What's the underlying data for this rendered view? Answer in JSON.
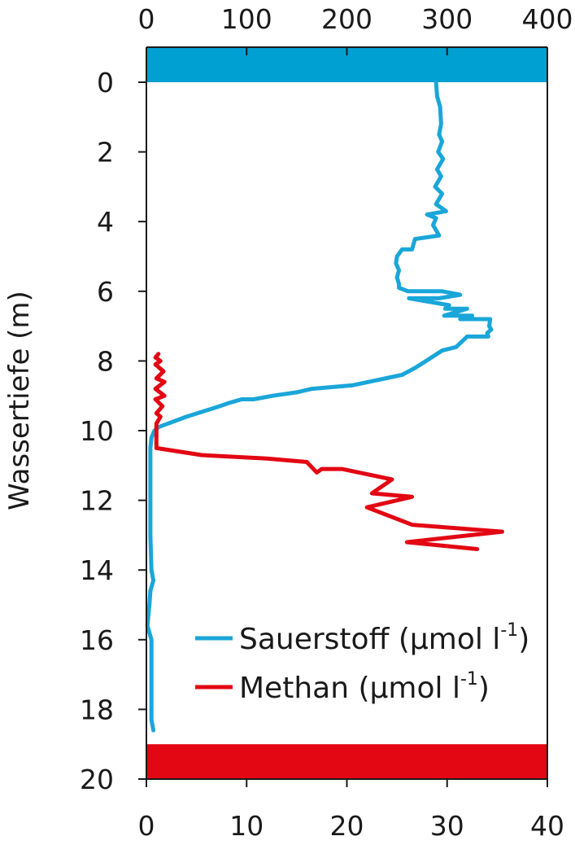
{
  "chart_data": {
    "type": "line",
    "orientation": "depth-profile (y axis inverted, depth increasing downward)",
    "ylabel": "Wassertiefe (m)",
    "ylim": [
      0,
      20
    ],
    "y_ticks": [
      0,
      2,
      4,
      6,
      8,
      10,
      12,
      14,
      16,
      18,
      20
    ],
    "x_top": {
      "ticks": [
        0,
        100,
        200,
        300,
        400
      ],
      "range": [
        0,
        400
      ],
      "series": "Sauerstoff"
    },
    "x_bottom": {
      "ticks": [
        0,
        10,
        20,
        30,
        40
      ],
      "range": [
        0,
        40
      ],
      "series": "Methan"
    },
    "legend": {
      "position": "bottom-right",
      "entries": [
        {
          "name": "Sauerstoff",
          "unit_base": "(µmol l",
          "unit_sup": "-1",
          "unit_close": ")"
        },
        {
          "name": "Methan",
          "unit_base": "(µmol l",
          "unit_sup": "-1",
          "unit_close": ")"
        }
      ]
    },
    "bands": [
      {
        "name": "surface",
        "from": -1,
        "to": 0,
        "color": "#00a0d2"
      },
      {
        "name": "bottom",
        "from": 19,
        "to": 20,
        "color": "#e30613"
      }
    ],
    "series": [
      {
        "name": "Sauerstoff",
        "axis": "top",
        "color": "#1aa6d9",
        "points": [
          [
            289,
            0.0
          ],
          [
            290,
            0.4
          ],
          [
            293,
            0.7
          ],
          [
            294,
            1.2
          ],
          [
            292,
            1.5
          ],
          [
            295,
            1.7
          ],
          [
            291,
            2.0
          ],
          [
            296,
            2.2
          ],
          [
            290,
            2.5
          ],
          [
            294,
            2.7
          ],
          [
            288,
            3.0
          ],
          [
            295,
            3.2
          ],
          [
            289,
            3.5
          ],
          [
            299,
            3.7
          ],
          [
            280,
            3.8
          ],
          [
            289,
            3.9
          ],
          [
            286,
            4.1
          ],
          [
            292,
            4.4
          ],
          [
            268,
            4.5
          ],
          [
            265,
            4.8
          ],
          [
            255,
            4.8
          ],
          [
            250,
            5.0
          ],
          [
            249,
            5.2
          ],
          [
            252,
            5.4
          ],
          [
            250,
            5.6
          ],
          [
            252,
            5.8
          ],
          [
            252,
            5.9
          ],
          [
            261,
            6.0
          ],
          [
            295,
            6.0
          ],
          [
            313,
            6.1
          ],
          [
            292,
            6.2
          ],
          [
            262,
            6.2
          ],
          [
            302,
            6.4
          ],
          [
            298,
            6.5
          ],
          [
            320,
            6.5
          ],
          [
            297,
            6.7
          ],
          [
            325,
            6.7
          ],
          [
            313,
            6.8
          ],
          [
            330,
            6.8
          ],
          [
            343,
            6.8
          ],
          [
            342,
            7.0
          ],
          [
            344,
            7.1
          ],
          [
            340,
            7.2
          ],
          [
            341,
            7.3
          ],
          [
            320,
            7.3
          ],
          [
            309,
            7.6
          ],
          [
            295,
            7.7
          ],
          [
            279,
            8.0
          ],
          [
            268,
            8.2
          ],
          [
            255,
            8.4
          ],
          [
            222,
            8.6
          ],
          [
            205,
            8.7
          ],
          [
            165,
            8.8
          ],
          [
            150,
            8.9
          ],
          [
            126,
            9.0
          ],
          [
            107,
            9.1
          ],
          [
            95,
            9.1
          ],
          [
            83,
            9.2
          ],
          [
            73,
            9.3
          ],
          [
            40,
            9.6
          ],
          [
            12,
            9.9
          ],
          [
            8,
            10.0
          ],
          [
            5,
            10.2
          ],
          [
            4,
            10.5
          ],
          [
            4,
            11.0
          ],
          [
            4,
            12.0
          ],
          [
            4,
            13.0
          ],
          [
            5,
            14.0
          ],
          [
            7,
            14.3
          ],
          [
            4,
            14.6
          ],
          [
            3,
            15.0
          ],
          [
            1,
            15.6
          ],
          [
            5,
            16.0
          ],
          [
            5,
            16.5
          ],
          [
            5,
            17.0
          ],
          [
            5,
            17.5
          ],
          [
            5,
            18.0
          ],
          [
            5,
            18.3
          ],
          [
            7,
            18.6
          ]
        ]
      },
      {
        "name": "Methan",
        "axis": "bottom",
        "color": "#e30613",
        "points": [
          [
            1.2,
            7.8
          ],
          [
            0.9,
            7.9
          ],
          [
            1.4,
            8.0
          ],
          [
            0.9,
            8.1
          ],
          [
            1.7,
            8.3
          ],
          [
            1.0,
            8.5
          ],
          [
            1.8,
            8.6
          ],
          [
            0.9,
            8.8
          ],
          [
            1.8,
            9.0
          ],
          [
            0.9,
            9.1
          ],
          [
            1.6,
            9.3
          ],
          [
            1.0,
            9.5
          ],
          [
            1.4,
            9.6
          ],
          [
            1.0,
            9.8
          ],
          [
            1.0,
            10.5
          ],
          [
            5.5,
            10.7
          ],
          [
            12.0,
            10.8
          ],
          [
            16.0,
            10.9
          ],
          [
            17.0,
            11.2
          ],
          [
            17.5,
            11.1
          ],
          [
            19.5,
            11.1
          ],
          [
            24.5,
            11.4
          ],
          [
            22.5,
            11.8
          ],
          [
            26.5,
            11.9
          ],
          [
            22.0,
            12.2
          ],
          [
            26.5,
            12.7
          ],
          [
            35.5,
            12.9
          ],
          [
            26.0,
            13.2
          ],
          [
            33.0,
            13.4
          ]
        ]
      }
    ]
  }
}
